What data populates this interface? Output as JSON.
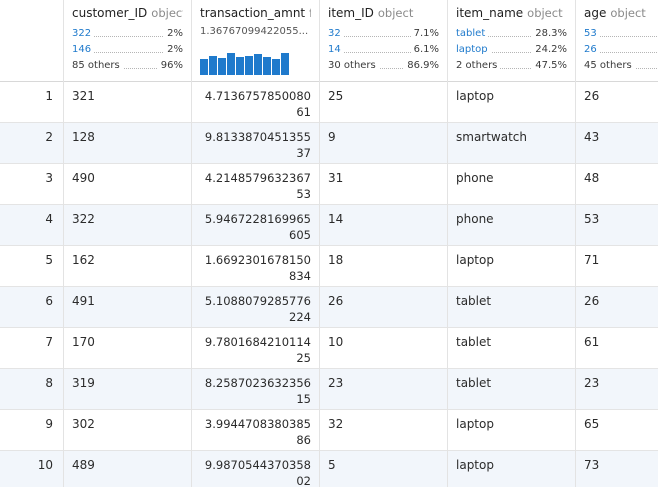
{
  "columns": {
    "customer_ID": {
      "name": "customer_ID",
      "dtype": "object",
      "stats": [
        {
          "label": "322",
          "pct": "2%"
        },
        {
          "label": "146",
          "pct": "2%"
        },
        {
          "label": "85 others",
          "pct": "96%"
        }
      ]
    },
    "transaction_amnt": {
      "name": "transaction_amnt",
      "dtype": "fl",
      "mean": "1.36767099422055...",
      "histogram": [
        0.62,
        0.72,
        0.66,
        0.86,
        0.68,
        0.74,
        0.8,
        0.68,
        0.62,
        0.84
      ]
    },
    "item_ID": {
      "name": "item_ID",
      "dtype": "object",
      "stats": [
        {
          "label": "32",
          "pct": "7.1%"
        },
        {
          "label": "14",
          "pct": "6.1%"
        },
        {
          "label": "30 others",
          "pct": "86.9%"
        }
      ]
    },
    "item_name": {
      "name": "item_name",
      "dtype": "object",
      "stats": [
        {
          "label": "tablet",
          "pct": "28.3%"
        },
        {
          "label": "laptop",
          "pct": "24.2%"
        },
        {
          "label": "2 others",
          "pct": "47.5%"
        }
      ]
    },
    "age": {
      "name": "age",
      "dtype": "object",
      "stats": [
        {
          "label": "53",
          "pct": ""
        },
        {
          "label": "26",
          "pct": ""
        },
        {
          "label": "45 others",
          "pct": ""
        }
      ]
    }
  },
  "rows": [
    {
      "index": "1",
      "customer_ID": "321",
      "transaction_amnt": "4.713675785008061",
      "item_ID": "25",
      "item_name": "laptop",
      "age": "26"
    },
    {
      "index": "2",
      "customer_ID": "128",
      "transaction_amnt": "9.813387045135537",
      "item_ID": "9",
      "item_name": "smartwatch",
      "age": "43"
    },
    {
      "index": "3",
      "customer_ID": "490",
      "transaction_amnt": "4.214857963236753",
      "item_ID": "31",
      "item_name": "phone",
      "age": "48"
    },
    {
      "index": "4",
      "customer_ID": "322",
      "transaction_amnt": "5.9467228169965605",
      "item_ID": "14",
      "item_name": "phone",
      "age": "53"
    },
    {
      "index": "5",
      "customer_ID": "162",
      "transaction_amnt": "1.6692301678150834",
      "item_ID": "18",
      "item_name": "laptop",
      "age": "71"
    },
    {
      "index": "6",
      "customer_ID": "491",
      "transaction_amnt": "5.1088079285776224",
      "item_ID": "26",
      "item_name": "tablet",
      "age": "26"
    },
    {
      "index": "7",
      "customer_ID": "170",
      "transaction_amnt": "9.780168421011425",
      "item_ID": "10",
      "item_name": "tablet",
      "age": "61"
    },
    {
      "index": "8",
      "customer_ID": "319",
      "transaction_amnt": "8.258702363235615",
      "item_ID": "23",
      "item_name": "tablet",
      "age": "23"
    },
    {
      "index": "9",
      "customer_ID": "302",
      "transaction_amnt": "3.994470838038586",
      "item_ID": "32",
      "item_name": "laptop",
      "age": "65"
    },
    {
      "index": "10",
      "customer_ID": "489",
      "transaction_amnt": "9.987054437035802",
      "item_ID": "5",
      "item_name": "laptop",
      "age": "73"
    }
  ],
  "colors": {
    "accent": "#1f7acc",
    "row_alt": "#f2f6fb",
    "border": "#e3e3e3"
  }
}
